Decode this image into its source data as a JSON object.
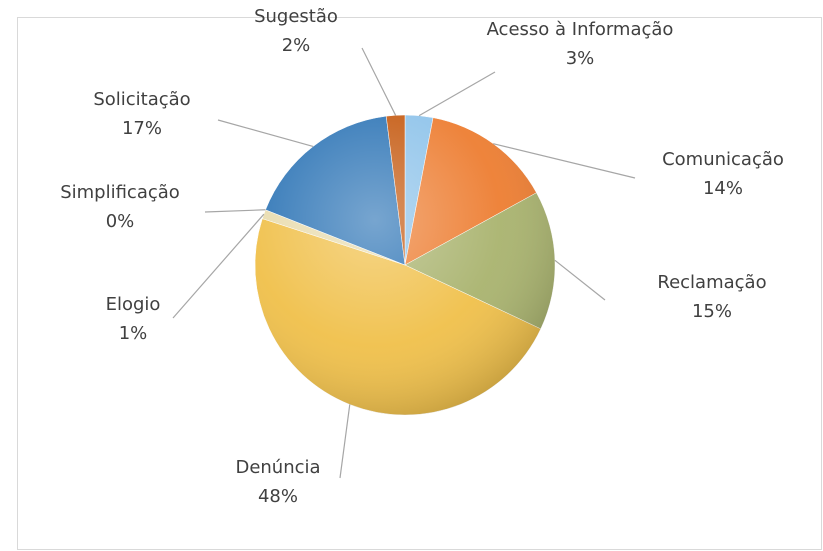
{
  "chart_data": {
    "type": "pie",
    "categories": [
      "Acesso à Informação",
      "Comunicação",
      "Reclamação",
      "Denúncia",
      "Elogio",
      "Simplificação",
      "Solicitação",
      "Sugestão"
    ],
    "values": [
      3,
      14,
      15,
      48,
      1,
      0,
      17,
      2
    ],
    "value_labels": [
      "3%",
      "14%",
      "15%",
      "48%",
      "1%",
      "0%",
      "17%",
      "2%"
    ],
    "colors": [
      "#8ec3ea",
      "#ed7d31",
      "#a9b36e",
      "#f0c04a",
      "#e9dcae",
      "#9dc3e6",
      "#2e75b6",
      "#c55a11"
    ]
  }
}
